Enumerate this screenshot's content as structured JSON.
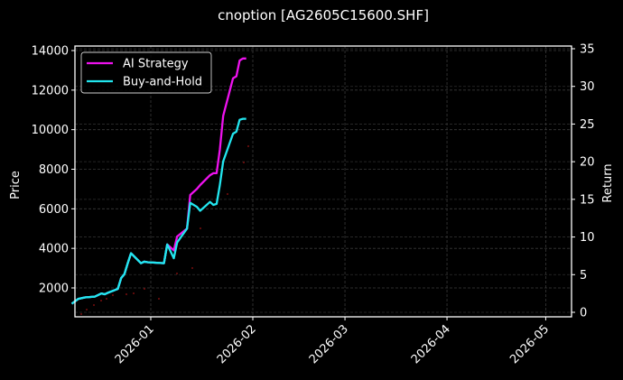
{
  "chart_data": {
    "type": "line",
    "title": "cnoption [AG2605C15600.SHF]",
    "xlabel": "",
    "ylabel": "Price",
    "y2label": "Return",
    "ylim": [
      600,
      14200
    ],
    "y2lim": [
      -0.3,
      34.9
    ],
    "yticks": [
      2000,
      4000,
      6000,
      8000,
      10000,
      12000,
      14000
    ],
    "y2ticks": [
      0,
      5,
      10,
      15,
      20,
      25,
      30,
      35
    ],
    "xticks": [
      "2026-01",
      "2026-02",
      "2026-03",
      "2026-04",
      "2026-05"
    ],
    "grid": true,
    "legend_position": "upper left",
    "x": [
      "2025-12-08",
      "2025-12-10",
      "2025-12-12",
      "2025-12-15",
      "2025-12-17",
      "2025-12-18",
      "2025-12-19",
      "2025-12-22",
      "2025-12-23",
      "2025-12-24",
      "2025-12-25",
      "2025-12-26",
      "2025-12-29",
      "2025-12-30",
      "2025-12-31",
      "2026-01-05",
      "2026-01-06",
      "2026-01-08",
      "2026-01-09",
      "2026-01-12",
      "2026-01-13",
      "2026-01-15",
      "2026-01-16",
      "2026-01-19",
      "2026-01-20",
      "2026-01-21",
      "2026-01-22",
      "2026-01-23",
      "2026-01-26",
      "2026-01-27",
      "2026-01-28",
      "2026-01-29",
      "2026-01-30"
    ],
    "series": [
      {
        "name": "AI Strategy",
        "color": "#ee12ee",
        "values": [
          1200,
          1450,
          1520,
          1560,
          1720,
          1680,
          1760,
          1950,
          2500,
          2700,
          3250,
          3750,
          3250,
          3330,
          3300,
          3250,
          4200,
          3900,
          4600,
          5000,
          6700,
          7000,
          7200,
          7700,
          7800,
          7800,
          9000,
          10700,
          12600,
          12700,
          13500,
          13600,
          13600
        ]
      },
      {
        "name": "Buy-and-Hold",
        "color": "#22e6ef",
        "values": [
          1200,
          1450,
          1520,
          1560,
          1720,
          1680,
          1760,
          1950,
          2500,
          2700,
          3250,
          3750,
          3250,
          3330,
          3300,
          3250,
          4200,
          3500,
          4300,
          5000,
          6300,
          6100,
          5900,
          6350,
          6200,
          6250,
          7200,
          8400,
          9800,
          9900,
          10500,
          10550,
          10550
        ]
      }
    ]
  },
  "legend": {
    "items": [
      {
        "label": "AI Strategy",
        "color": "#ee12ee"
      },
      {
        "label": "Buy-and-Hold",
        "color": "#22e6ef"
      }
    ]
  }
}
